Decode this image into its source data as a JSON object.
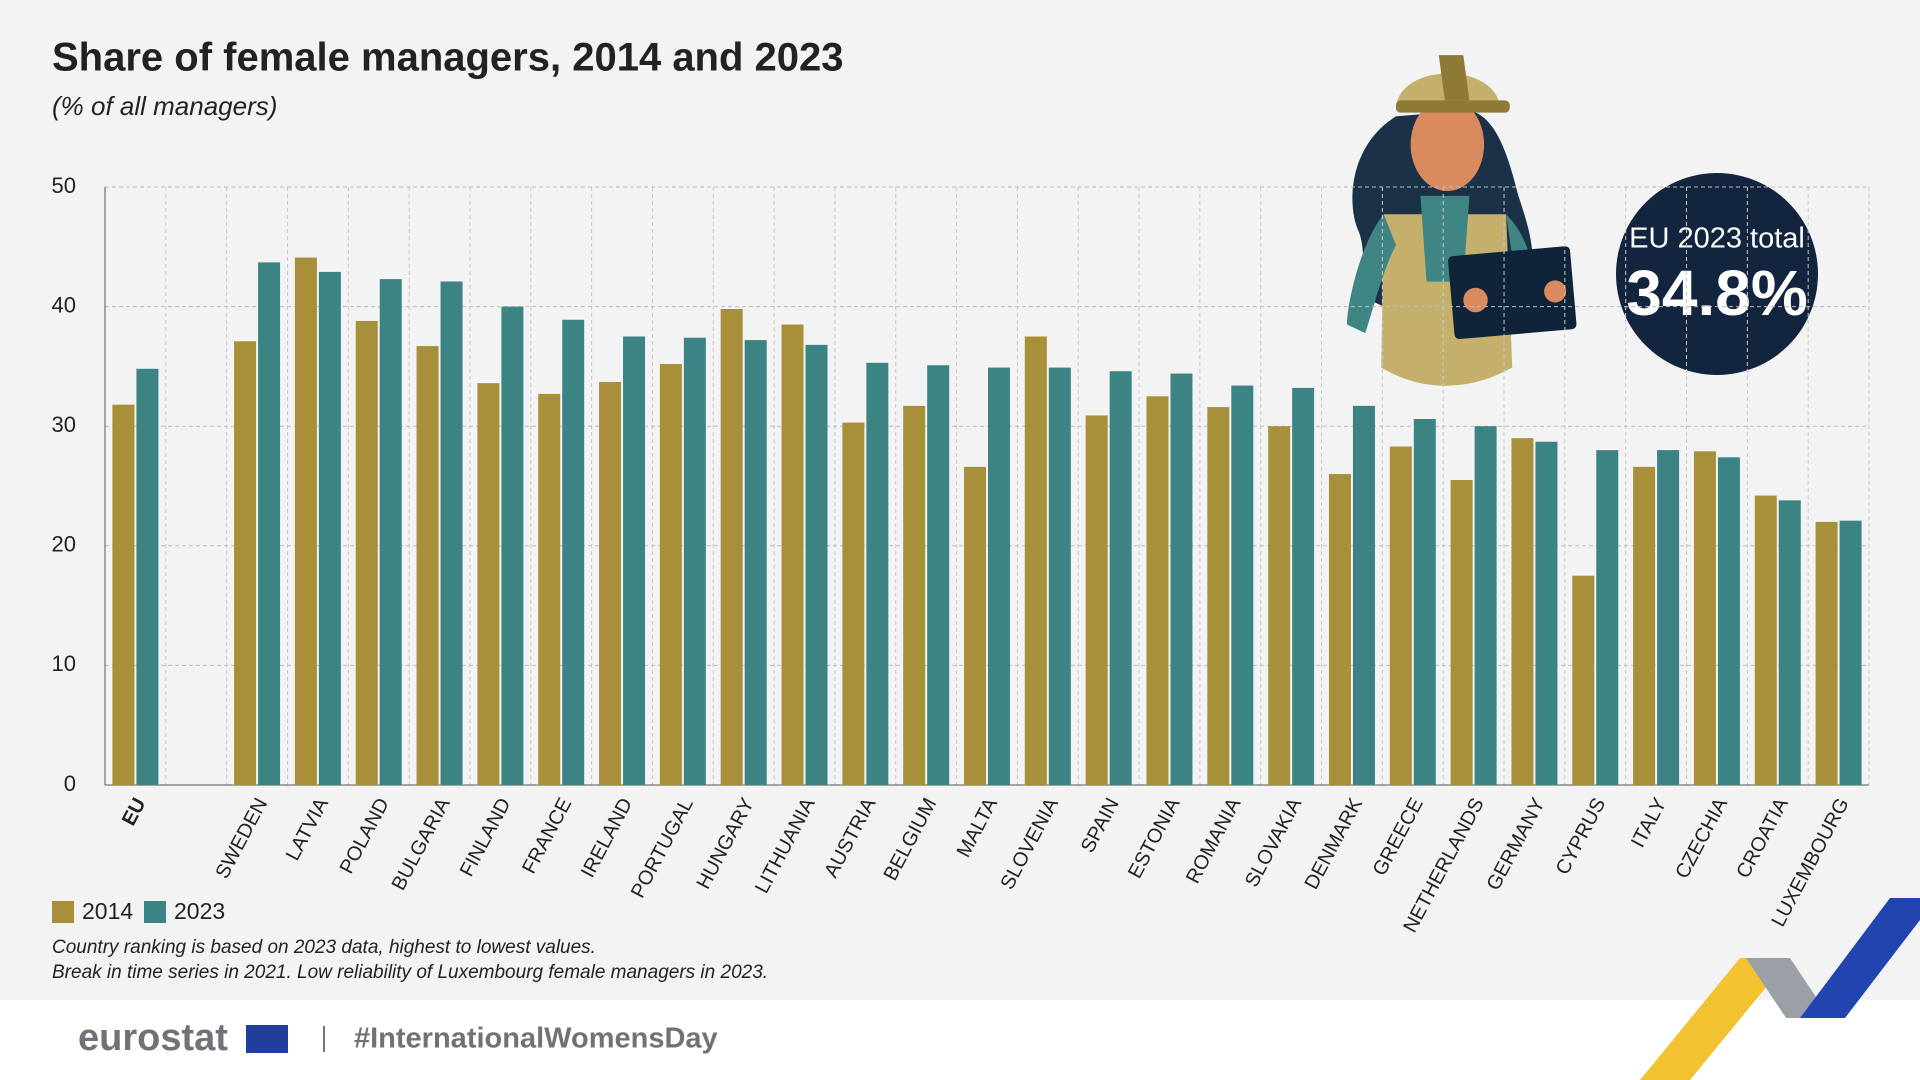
{
  "chart_data": {
    "type": "bar",
    "title": "Share of female managers, 2014 and 2023",
    "subtitle": "(% of all managers)",
    "categories": [
      "EU",
      null,
      "SWEDEN",
      "LATVIA",
      "POLAND",
      "BULGARIA",
      "FINLAND",
      "FRANCE",
      "IRELAND",
      "PORTUGAL",
      "HUNGARY",
      "LITHUANIA",
      "AUSTRIA",
      "BELGIUM",
      "MALTA",
      "SLOVENIA",
      "SPAIN",
      "ESTONIA",
      "ROMANIA",
      "SLOVAKIA",
      "DENMARK",
      "GREECE",
      "NETHERLANDS",
      "GERMANY",
      "CYPRUS",
      "ITALY",
      "CZECHIA",
      "CROATIA",
      "LUXEMBOURG"
    ],
    "series": [
      {
        "name": "2014",
        "color": "#a8903a",
        "values": [
          31.8,
          null,
          37.1,
          44.1,
          38.8,
          36.7,
          33.6,
          32.7,
          33.7,
          35.2,
          39.8,
          38.5,
          30.3,
          31.7,
          26.6,
          37.5,
          30.9,
          32.5,
          31.6,
          30.0,
          26.0,
          28.3,
          25.5,
          29.0,
          17.5,
          26.6,
          27.9,
          24.2,
          22.0
        ]
      },
      {
        "name": "2023",
        "color": "#3c8484",
        "values": [
          34.8,
          null,
          43.7,
          42.9,
          42.3,
          42.1,
          40.0,
          38.9,
          37.5,
          37.4,
          37.2,
          36.8,
          35.3,
          35.1,
          34.9,
          34.9,
          34.6,
          34.4,
          33.4,
          33.2,
          31.7,
          30.6,
          30.0,
          28.7,
          28.0,
          28.0,
          27.4,
          23.8,
          22.1
        ]
      }
    ],
    "ylim": [
      0,
      50
    ],
    "yticks": [
      0,
      10,
      20,
      30,
      40,
      50
    ],
    "grid": true,
    "annotation": {
      "label": "EU 2023 total",
      "value_text": "34.8%"
    },
    "notes": [
      "Country ranking is based on 2023 data, highest to lowest values.",
      "Break in time series in 2021. Low reliability of Luxembourg female managers in 2023."
    ]
  },
  "footer": {
    "logo": "eurostat",
    "hashtag": "#InternationalWomensDay"
  }
}
